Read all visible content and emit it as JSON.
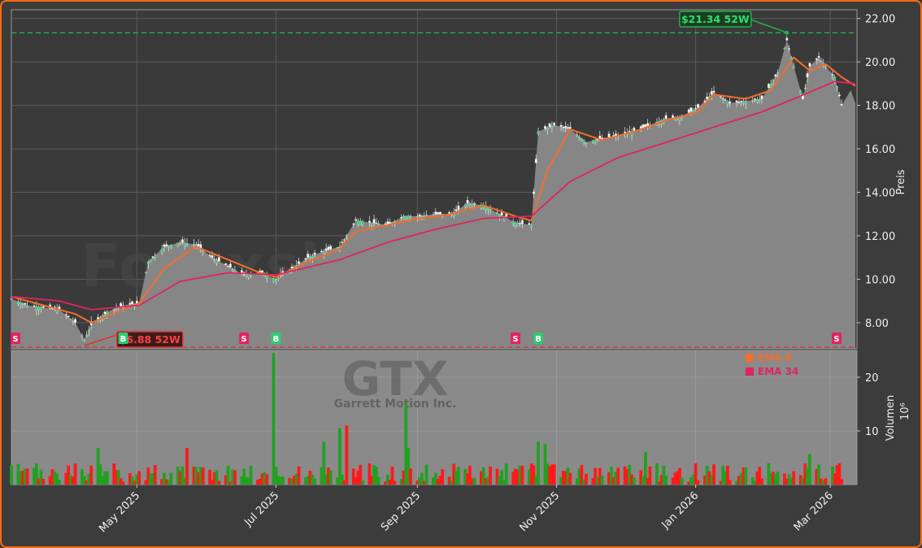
{
  "chart_data": [
    {
      "type": "candlestick-area",
      "ticker": "GTX",
      "company": "Garrett Motion Inc.",
      "watermark": "Forexsignale.trade",
      "ylabel": "Preis",
      "ylim": [
        6.8,
        22.4
      ],
      "yticks": [
        "8.00",
        "10.00",
        "12.00",
        "14.00",
        "16.00",
        "18.00",
        "20.00",
        "22.00"
      ],
      "ytick_values": [
        8,
        10,
        12,
        14,
        16,
        18,
        20,
        22
      ],
      "xtick_labels": [
        "May 2025",
        "Jul 2025",
        "Sep 2025",
        "Nov 2025",
        "Jan 2026",
        "Mar 2026"
      ],
      "xtick_dates": [
        "2025-05-01",
        "2025-07-01",
        "2025-09-01",
        "2025-11-01",
        "2026-01-01",
        "2026-03-01"
      ],
      "date_range": [
        "2025-03-07",
        "2026-03-12"
      ],
      "price_series": {
        "name": "close",
        "points": [
          [
            "2025-03-07",
            9.1
          ],
          [
            "2025-03-14",
            8.8
          ],
          [
            "2025-03-21",
            8.7
          ],
          [
            "2025-03-28",
            8.6
          ],
          [
            "2025-04-04",
            8.0
          ],
          [
            "2025-04-08",
            7.2
          ],
          [
            "2025-04-11",
            7.9
          ],
          [
            "2025-04-18",
            8.5
          ],
          [
            "2025-04-25",
            8.8
          ],
          [
            "2025-05-02",
            8.9
          ],
          [
            "2025-05-06",
            10.8
          ],
          [
            "2025-05-13",
            11.5
          ],
          [
            "2025-05-20",
            11.7
          ],
          [
            "2025-05-27",
            11.6
          ],
          [
            "2025-06-03",
            11.0
          ],
          [
            "2025-06-10",
            10.6
          ],
          [
            "2025-06-17",
            10.2
          ],
          [
            "2025-06-24",
            10.3
          ],
          [
            "2025-07-01",
            10.0
          ],
          [
            "2025-07-08",
            10.5
          ],
          [
            "2025-07-15",
            11.0
          ],
          [
            "2025-07-22",
            11.3
          ],
          [
            "2025-07-29",
            11.5
          ],
          [
            "2025-08-05",
            12.7
          ],
          [
            "2025-08-12",
            12.6
          ],
          [
            "2025-08-19",
            12.5
          ],
          [
            "2025-08-26",
            12.9
          ],
          [
            "2025-09-02",
            12.9
          ],
          [
            "2025-09-09",
            13.0
          ],
          [
            "2025-09-16",
            13.0
          ],
          [
            "2025-09-23",
            13.5
          ],
          [
            "2025-09-30",
            13.4
          ],
          [
            "2025-10-07",
            13.0
          ],
          [
            "2025-10-14",
            12.6
          ],
          [
            "2025-10-21",
            12.5
          ],
          [
            "2025-10-24",
            16.8
          ],
          [
            "2025-10-31",
            17.1
          ],
          [
            "2025-11-07",
            16.9
          ],
          [
            "2025-11-14",
            16.3
          ],
          [
            "2025-11-21",
            16.5
          ],
          [
            "2025-11-28",
            16.6
          ],
          [
            "2025-12-05",
            16.8
          ],
          [
            "2025-12-12",
            17.1
          ],
          [
            "2025-12-19",
            17.4
          ],
          [
            "2025-12-26",
            17.5
          ],
          [
            "2026-01-02",
            17.9
          ],
          [
            "2026-01-09",
            18.6
          ],
          [
            "2026-01-16",
            18.1
          ],
          [
            "2026-01-23",
            18.2
          ],
          [
            "2026-01-30",
            18.3
          ],
          [
            "2026-02-06",
            19.5
          ],
          [
            "2026-02-10",
            21.0
          ],
          [
            "2026-02-13",
            19.8
          ],
          [
            "2026-02-17",
            18.3
          ],
          [
            "2026-02-20",
            19.8
          ],
          [
            "2026-02-24",
            20.2
          ],
          [
            "2026-02-27",
            19.8
          ],
          [
            "2026-03-03",
            19.3
          ],
          [
            "2026-03-06",
            18.0
          ],
          [
            "2026-03-10",
            18.7
          ],
          [
            "2026-03-12",
            18.1
          ]
        ]
      },
      "ema_series": [
        {
          "name": "EMA 8",
          "color": "#f36c2e",
          "points": [
            [
              "2025-03-07",
              9.2
            ],
            [
              "2025-03-21",
              8.8
            ],
            [
              "2025-04-04",
              8.4
            ],
            [
              "2025-04-11",
              8.0
            ],
            [
              "2025-04-18",
              8.3
            ],
            [
              "2025-05-02",
              8.9
            ],
            [
              "2025-05-13",
              10.5
            ],
            [
              "2025-05-27",
              11.5
            ],
            [
              "2025-06-10",
              10.9
            ],
            [
              "2025-06-24",
              10.3
            ],
            [
              "2025-07-01",
              10.1
            ],
            [
              "2025-07-15",
              10.8
            ],
            [
              "2025-07-29",
              11.4
            ],
            [
              "2025-08-05",
              12.2
            ],
            [
              "2025-08-19",
              12.5
            ],
            [
              "2025-09-02",
              12.8
            ],
            [
              "2025-09-16",
              13.0
            ],
            [
              "2025-09-30",
              13.4
            ],
            [
              "2025-10-14",
              12.9
            ],
            [
              "2025-10-21",
              12.7
            ],
            [
              "2025-10-28",
              15.0
            ],
            [
              "2025-11-07",
              16.9
            ],
            [
              "2025-11-21",
              16.4
            ],
            [
              "2025-12-05",
              16.8
            ],
            [
              "2025-12-19",
              17.3
            ],
            [
              "2026-01-02",
              17.7
            ],
            [
              "2026-01-09",
              18.5
            ],
            [
              "2026-01-23",
              18.3
            ],
            [
              "2026-02-03",
              18.7
            ],
            [
              "2026-02-13",
              20.2
            ],
            [
              "2026-02-20",
              19.6
            ],
            [
              "2026-02-27",
              19.9
            ],
            [
              "2026-03-06",
              19.3
            ],
            [
              "2026-03-12",
              18.9
            ]
          ]
        },
        {
          "name": "EMA 34",
          "color": "#e0245e",
          "points": [
            [
              "2025-03-07",
              9.2
            ],
            [
              "2025-03-28",
              9.0
            ],
            [
              "2025-04-11",
              8.6
            ],
            [
              "2025-05-02",
              8.8
            ],
            [
              "2025-05-20",
              9.9
            ],
            [
              "2025-06-10",
              10.3
            ],
            [
              "2025-07-01",
              10.2
            ],
            [
              "2025-07-29",
              10.9
            ],
            [
              "2025-08-19",
              11.7
            ],
            [
              "2025-09-09",
              12.3
            ],
            [
              "2025-09-30",
              12.8
            ],
            [
              "2025-10-21",
              12.9
            ],
            [
              "2025-11-07",
              14.5
            ],
            [
              "2025-11-28",
              15.6
            ],
            [
              "2025-12-19",
              16.3
            ],
            [
              "2026-01-09",
              17.0
            ],
            [
              "2026-01-30",
              17.7
            ],
            [
              "2026-02-13",
              18.3
            ],
            [
              "2026-03-03",
              19.1
            ],
            [
              "2026-03-12",
              19.0
            ]
          ]
        }
      ],
      "high_52w": {
        "value": 21.34,
        "label": "$21.34 52W",
        "date": "2026-02-10",
        "color": "#22b14c"
      },
      "low_52w": {
        "value": 6.88,
        "label": "$6.88 52W",
        "date": "2025-04-08",
        "color": "#e03030"
      },
      "signals": [
        {
          "type": "S",
          "date": "2025-03-07"
        },
        {
          "type": "B",
          "date": "2025-04-25"
        },
        {
          "type": "S",
          "date": "2025-06-17"
        },
        {
          "type": "B",
          "date": "2025-07-01"
        },
        {
          "type": "S",
          "date": "2025-10-14"
        },
        {
          "type": "B",
          "date": "2025-10-24"
        },
        {
          "type": "S",
          "date": "2026-03-12"
        }
      ]
    },
    {
      "type": "bar",
      "ylabel": "Volumen",
      "yunit": "10⁶",
      "ylim": [
        0,
        25
      ],
      "yticks": [
        "10",
        "20"
      ],
      "ytick_values": [
        10,
        20
      ],
      "legend": [
        {
          "label": "EMA 8",
          "color": "#f36c2e"
        },
        {
          "label": "EMA 34",
          "color": "#e0245e"
        }
      ],
      "spikes": [
        {
          "date": "2025-06-30",
          "value": 24.5,
          "direction": "up"
        },
        {
          "date": "2025-08-27",
          "value": 15.2,
          "direction": "up"
        },
        {
          "date": "2025-08-01",
          "value": 11.0,
          "direction": "down"
        },
        {
          "date": "2025-07-29",
          "value": 10.5,
          "direction": "up"
        },
        {
          "date": "2025-07-22",
          "value": 8.0,
          "direction": "up"
        },
        {
          "date": "2025-08-28",
          "value": 6.8,
          "direction": "up"
        },
        {
          "date": "2025-10-24",
          "value": 8.0,
          "direction": "up"
        },
        {
          "date": "2025-10-27",
          "value": 7.6,
          "direction": "up"
        },
        {
          "date": "2025-04-14",
          "value": 6.8,
          "direction": "up"
        },
        {
          "date": "2025-05-23",
          "value": 6.8,
          "direction": "down"
        },
        {
          "date": "2025-12-10",
          "value": 6.1,
          "direction": "up"
        },
        {
          "date": "2026-02-20",
          "value": 5.7,
          "direction": "up"
        }
      ],
      "typical_range": [
        0.5,
        4
      ]
    }
  ]
}
